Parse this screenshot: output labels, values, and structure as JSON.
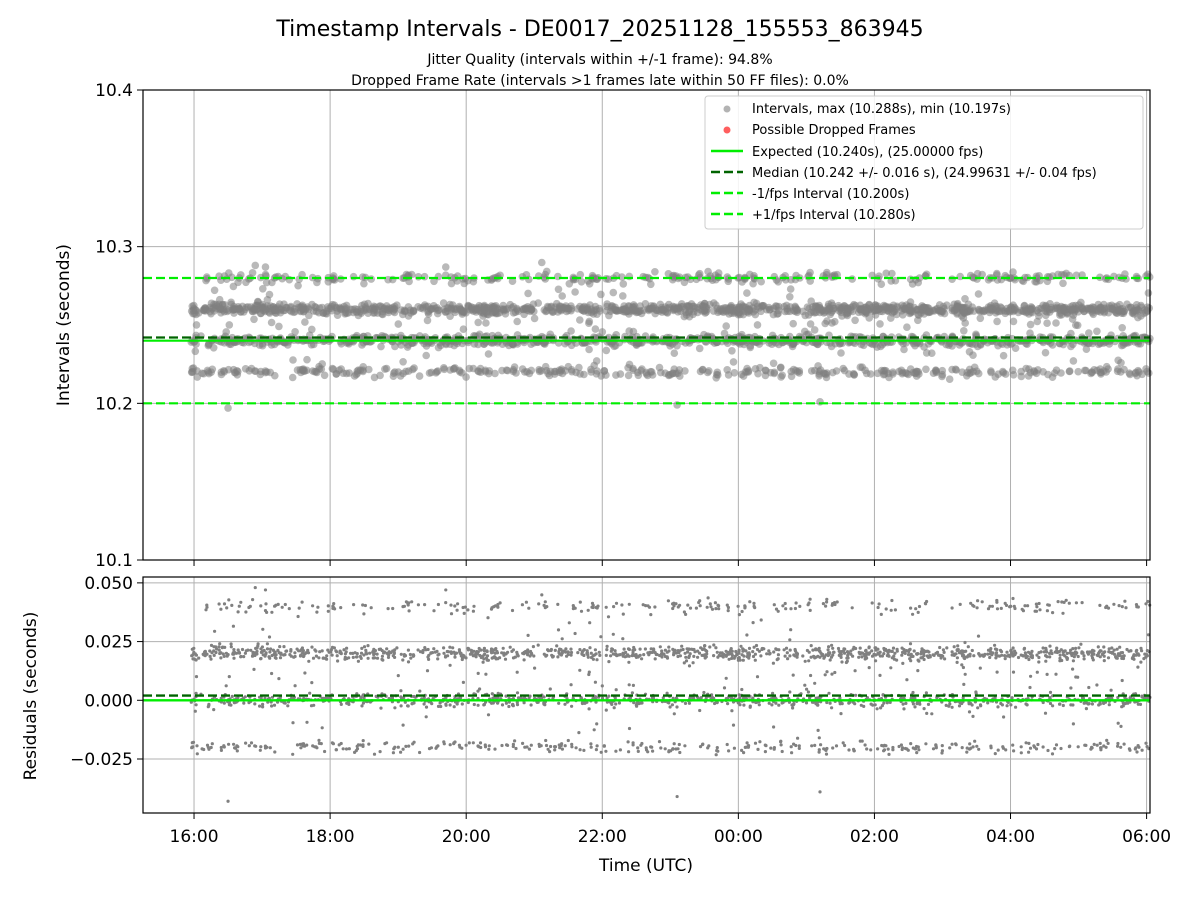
{
  "figure": {
    "title": "Timestamp Intervals - DE0017_20251128_155553_863945",
    "subtitle_line1": "Jitter Quality (intervals within +/-1 frame): 94.8%",
    "subtitle_line2": "Dropped Frame Rate (intervals >1 frames late within 50 FF files): 0.0%"
  },
  "colors": {
    "scatter": "#808080",
    "dropped": "#ff4c4c",
    "expected": "#00ee00",
    "median": "#006400",
    "interval_bounds": "#00ee00",
    "grid": "#b0b0b0"
  },
  "chart_data": [
    {
      "type": "scatter",
      "panel": "intervals",
      "ylabel": "Intervals (seconds)",
      "xlabel": "",
      "ylim": [
        10.1,
        10.4
      ],
      "yticks": [
        10.1,
        10.2,
        10.3,
        10.4
      ],
      "ytick_labels": [
        "10.1",
        "10.2",
        "10.3",
        "10.4"
      ],
      "xlim_hours": [
        15.25,
        30.05
      ],
      "xticks_hours": [
        16,
        18,
        20,
        22,
        24,
        26,
        28,
        30
      ],
      "grid": true,
      "legend_position": "top-right",
      "legend": [
        {
          "label": "Intervals, max (10.288s), min (10.197s)",
          "kind": "dot",
          "color": "#808080"
        },
        {
          "label": "Possible Dropped Frames",
          "kind": "dot",
          "color": "#ff4c4c"
        },
        {
          "label": "Expected (10.240s), (25.00000 fps)",
          "kind": "solid",
          "color": "#00ee00"
        },
        {
          "label": "Median (10.242 +/- 0.016 s), (24.99631 +/- 0.04 fps)",
          "kind": "dashed",
          "color": "#006400"
        },
        {
          "label": "-1/fps Interval (10.200s)",
          "kind": "dashed",
          "color": "#00ee00"
        },
        {
          "label": "+1/fps Interval (10.280s)",
          "kind": "dashed",
          "color": "#00ee00"
        }
      ],
      "reference_lines": [
        {
          "name": "expected",
          "y": 10.24,
          "style": "solid"
        },
        {
          "name": "median",
          "y": 10.242,
          "style": "dashed"
        },
        {
          "name": "minus-one-frame",
          "y": 10.2,
          "style": "dashed"
        },
        {
          "name": "plus-one-frame",
          "y": 10.28,
          "style": "dashed"
        }
      ],
      "series": [
        {
          "name": "Intervals",
          "x_range_hours": [
            15.95,
            30.05
          ],
          "clusters": [
            {
              "y": 10.26,
              "weight": 0.4,
              "spread": 0.0016
            },
            {
              "y": 10.24,
              "weight": 0.3,
              "spread": 0.0016
            },
            {
              "y": 10.22,
              "weight": 0.13,
              "spread": 0.0014
            },
            {
              "y": 10.28,
              "weight": 0.09,
              "spread": 0.0016
            },
            {
              "y": 10.25,
              "weight": 0.08,
              "spread": 0.016
            }
          ],
          "outliers": [
            {
              "x": 16.5,
              "y": 10.197
            },
            {
              "x": 23.1,
              "y": 10.199
            },
            {
              "x": 25.2,
              "y": 10.201
            },
            {
              "x": 16.9,
              "y": 10.288
            },
            {
              "x": 17.05,
              "y": 10.287
            },
            {
              "x": 19.7,
              "y": 10.287
            }
          ]
        }
      ]
    },
    {
      "type": "scatter",
      "panel": "residuals",
      "ylabel": "Residuals (seconds)",
      "xlabel": "Time (UTC)",
      "ylim": [
        -0.048,
        0.0525
      ],
      "yticks": [
        -0.025,
        0.0,
        0.025,
        0.05
      ],
      "ytick_labels": [
        "−0.025",
        "0.000",
        "0.025",
        "0.050"
      ],
      "xlim_hours": [
        15.25,
        30.05
      ],
      "xticks_hours": [
        16,
        18,
        20,
        22,
        24,
        26,
        28,
        30
      ],
      "xtick_labels": [
        "16:00",
        "18:00",
        "20:00",
        "22:00",
        "00:00",
        "02:00",
        "04:00",
        "06:00"
      ],
      "grid": true,
      "reference_lines": [
        {
          "name": "zero",
          "y": 0.0,
          "style": "solid"
        },
        {
          "name": "median-offset",
          "y": 0.002,
          "style": "dashed"
        }
      ],
      "series": [
        {
          "name": "Residuals",
          "x_range_hours": [
            15.95,
            30.05
          ],
          "clusters": [
            {
              "y": 0.02,
              "weight": 0.4,
              "spread": 0.0014
            },
            {
              "y": 0.0,
              "weight": 0.3,
              "spread": 0.0014
            },
            {
              "y": -0.02,
              "weight": 0.13,
              "spread": 0.0012
            },
            {
              "y": 0.04,
              "weight": 0.09,
              "spread": 0.0014
            },
            {
              "y": 0.01,
              "weight": 0.08,
              "spread": 0.014
            }
          ],
          "outliers": [
            {
              "x": 16.5,
              "y": -0.043
            },
            {
              "x": 23.1,
              "y": -0.041
            },
            {
              "x": 25.2,
              "y": -0.039
            },
            {
              "x": 16.9,
              "y": 0.048
            },
            {
              "x": 17.05,
              "y": 0.047
            },
            {
              "x": 19.7,
              "y": 0.047
            }
          ]
        }
      ]
    }
  ]
}
